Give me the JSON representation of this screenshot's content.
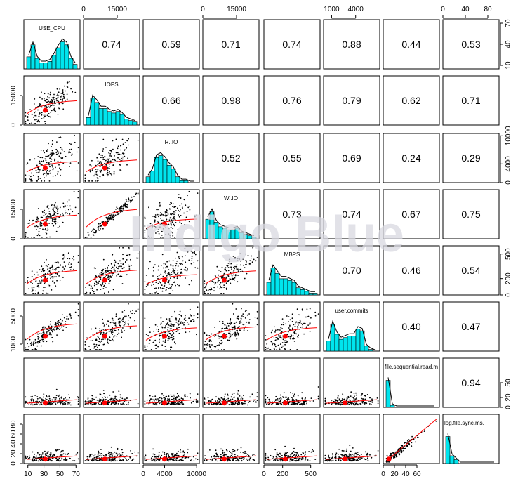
{
  "watermark": "Indigo Blue",
  "colors": {
    "hist_fill": "#00E5EE",
    "smooth": "#FF0000",
    "points": "#000000",
    "watermark": "#D8D8E0"
  },
  "chart_data": {
    "type": "scatter-matrix",
    "variables": [
      "USE_CPU",
      "IOPS",
      "R..IO",
      "W..IO",
      "MBPS",
      "user.commits",
      "file.sequential.read.m",
      "log.file.sync.ms."
    ],
    "ranges": [
      [
        5,
        75
      ],
      [
        0,
        25000
      ],
      [
        0,
        10500
      ],
      [
        0,
        25000
      ],
      [
        0,
        600
      ],
      [
        0,
        7000
      ],
      [
        0,
        100
      ],
      [
        0,
        100
      ]
    ],
    "correlations": [
      [
        "",
        "0.74",
        "0.59",
        "0.71",
        "0.74",
        "0.88",
        "0.44",
        "0.53"
      ],
      [
        "",
        "",
        "0.66",
        "0.98",
        "0.76",
        "0.79",
        "0.62",
        "0.71"
      ],
      [
        "",
        "",
        "",
        "0.52",
        "0.55",
        "0.69",
        "0.24",
        "0.29"
      ],
      [
        "",
        "",
        "",
        "",
        "0.73",
        "0.74",
        "0.67",
        "0.75"
      ],
      [
        "",
        "",
        "",
        "",
        "",
        "0.70",
        "0.46",
        "0.54"
      ],
      [
        "",
        "",
        "",
        "",
        "",
        "",
        "0.40",
        "0.47"
      ],
      [
        "",
        "",
        "",
        "",
        "",
        "",
        "",
        "0.94"
      ],
      [
        "",
        "",
        "",
        "",
        "",
        "",
        "",
        ""
      ]
    ],
    "axes": {
      "top": [
        {
          "col": 1,
          "ticks": [
            0,
            15000
          ],
          "labels": [
            "0",
            "15000"
          ]
        },
        {
          "col": 3,
          "ticks": [
            0,
            15000
          ],
          "labels": [
            "0",
            "15000"
          ]
        },
        {
          "col": 5,
          "ticks": [
            1000,
            4000
          ],
          "labels": [
            "1000",
            "4000"
          ]
        },
        {
          "col": 7,
          "ticks": [
            0,
            40,
            80
          ],
          "labels": [
            "0",
            "40",
            "80"
          ]
        }
      ],
      "bottom": [
        {
          "col": 0,
          "ticks": [
            10,
            30,
            50,
            70
          ],
          "labels": [
            "10",
            "30",
            "50",
            "70"
          ]
        },
        {
          "col": 2,
          "ticks": [
            0,
            4000,
            10000
          ],
          "labels": [
            "0",
            "4000",
            "10000"
          ]
        },
        {
          "col": 4,
          "ticks": [
            0,
            200,
            500
          ],
          "labels": [
            "0",
            "200",
            "500"
          ]
        },
        {
          "col": 6,
          "ticks": [
            0,
            20,
            40,
            60
          ],
          "labels": [
            "0",
            "20",
            "40",
            "60"
          ]
        }
      ],
      "left": [
        {
          "row": 1,
          "ticks": [
            0,
            15000
          ],
          "labels": [
            "0",
            "15000"
          ]
        },
        {
          "row": 3,
          "ticks": [
            0,
            15000
          ],
          "labels": [
            "0",
            "15000"
          ]
        },
        {
          "row": 5,
          "ticks": [
            1000,
            5000
          ],
          "labels": [
            "1000",
            "5000"
          ]
        },
        {
          "row": 7,
          "ticks": [
            0,
            20,
            40,
            60,
            80
          ],
          "labels": [
            "0",
            "20",
            "40",
            "60",
            "80"
          ]
        }
      ],
      "right": [
        {
          "row": 0,
          "ticks": [
            10,
            40,
            70
          ],
          "labels": [
            "10",
            "40",
            "70"
          ]
        },
        {
          "row": 2,
          "ticks": [
            0,
            4000,
            10000
          ],
          "labels": [
            "0",
            "4000",
            "10000"
          ]
        },
        {
          "row": 4,
          "ticks": [
            0,
            200,
            500
          ],
          "labels": [
            "0",
            "200",
            "500"
          ]
        },
        {
          "row": 6,
          "ticks": [
            0,
            20,
            50
          ],
          "labels": [
            "0",
            "20",
            "50"
          ]
        }
      ]
    },
    "histograms": [
      [
        8,
        16,
        7,
        4,
        4,
        5,
        9,
        14,
        18,
        16,
        7,
        3
      ],
      [
        5,
        18,
        15,
        11,
        11,
        9,
        8,
        9,
        7,
        4,
        3,
        2
      ],
      [
        3,
        6,
        13,
        14,
        12,
        9,
        7,
        3,
        1,
        1,
        0,
        0
      ],
      [
        13,
        18,
        11,
        8,
        7,
        6,
        6,
        7,
        4,
        3,
        2,
        1
      ],
      [
        7,
        15,
        12,
        9,
        9,
        8,
        7,
        4,
        3,
        2,
        1,
        1
      ],
      [
        6,
        16,
        10,
        7,
        8,
        9,
        9,
        13,
        12,
        3,
        1,
        0
      ],
      [
        13,
        1,
        0,
        0,
        0,
        0,
        0,
        0,
        0,
        0,
        0,
        0
      ],
      [
        7,
        2,
        1,
        0,
        0,
        0,
        0,
        0,
        0,
        0,
        0,
        0
      ]
    ]
  }
}
